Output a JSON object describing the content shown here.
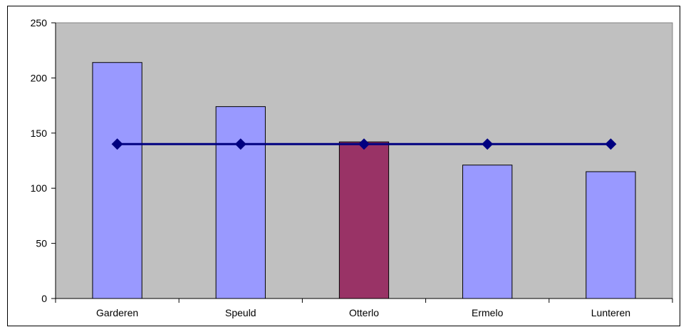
{
  "chart_data": {
    "type": "bar",
    "categories": [
      "Garderen",
      "Speuld",
      "Otterlo",
      "Ermelo",
      "Lunteren"
    ],
    "series": [
      {
        "type": "bar",
        "values": [
          214,
          174,
          142,
          121,
          115
        ],
        "colors": [
          "#9999ff",
          "#9999ff",
          "#993366",
          "#9999ff",
          "#9999ff"
        ]
      },
      {
        "type": "line",
        "values": [
          140,
          140,
          140,
          140,
          140
        ],
        "color": "#000080",
        "marker": "diamond"
      }
    ],
    "ylim": [
      0,
      250
    ],
    "yticks": [
      0,
      50,
      100,
      150,
      200,
      250
    ],
    "ytick_labels": [
      "0",
      "50",
      "100",
      "150",
      "200",
      "250"
    ],
    "grid": false,
    "plot_background": "#c0c0c0",
    "title": "",
    "xlabel": "",
    "ylabel": ""
  }
}
